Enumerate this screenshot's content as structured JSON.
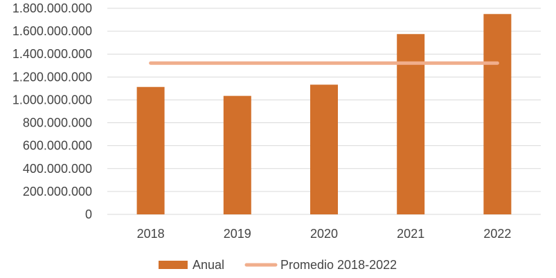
{
  "chart_data": {
    "type": "bar",
    "categories": [
      "2018",
      "2019",
      "2020",
      "2021",
      "2022"
    ],
    "series": [
      {
        "name": "Anual",
        "type": "bar",
        "color": "#D2702B",
        "values": [
          1113000000,
          1035000000,
          1133000000,
          1575000000,
          1750000000
        ]
      },
      {
        "name": "Promedio 2018-2022",
        "type": "line",
        "color": "#F0AE8C",
        "values": [
          1321200000,
          1321200000,
          1321200000,
          1321200000,
          1321200000
        ]
      }
    ],
    "y_ticks": [
      "0",
      "200.000.000",
      "400.000.000",
      "600.000.000",
      "800.000.000",
      "1.000.000.000",
      "1.200.000.000",
      "1.400.000.000",
      "1.600.000.000",
      "1.800.000.000"
    ],
    "ylim": [
      0,
      1800000000
    ],
    "grid": true,
    "legend_position": "bottom",
    "title": "",
    "xlabel": "",
    "ylabel": ""
  }
}
